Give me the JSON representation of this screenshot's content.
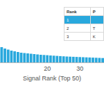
{
  "chart_data": {
    "type": "bar",
    "x_label": "Signal Rank (Top 50)",
    "x": [
      6,
      7,
      8,
      9,
      10,
      11,
      12,
      13,
      14,
      15,
      16,
      17,
      18,
      19,
      20,
      21,
      22,
      23,
      24,
      25,
      26,
      27,
      28,
      29,
      30,
      31,
      32,
      33,
      34,
      35,
      36,
      37
    ],
    "values": [
      22,
      20,
      18.5,
      17,
      16,
      15,
      14,
      13.5,
      13,
      12.5,
      12,
      11.5,
      11,
      10.7,
      10.4,
      10,
      9.7,
      9.4,
      9.1,
      8.8,
      8.5,
      8.3,
      8.1,
      7.9,
      7.7,
      7.5,
      7.3,
      7.1,
      6.9,
      6.7,
      6.5,
      6.3
    ],
    "color": "#29a8dd",
    "xlim": [
      5.5,
      37.4
    ],
    "xticks": [
      20,
      30
    ],
    "ylim": [
      0,
      90
    ],
    "grid": false,
    "tick_labels": "x"
  },
  "table": {
    "header": [
      "Rank",
      "P"
    ],
    "rows": [
      [
        "1"
      ],
      [
        "2",
        "T"
      ],
      [
        "3",
        "K"
      ]
    ]
  }
}
